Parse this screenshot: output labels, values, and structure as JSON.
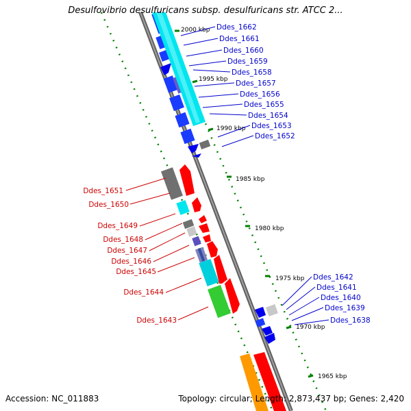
{
  "title": "Desulfovibrio desulfuricans subsp. desulfuricans str. ATCC 2...",
  "footer": {
    "accession": "Accession: NC_011883",
    "summary": "Topology: circular; Length: 2,873,437 bp; Genes: 2,420"
  },
  "scale_labels": [
    "2000 kbp",
    "1995 kbp",
    "1990 kbp",
    "1985 kbp",
    "1980 kbp",
    "1975 kbp",
    "1970 kbp",
    "1965 kbp"
  ],
  "colors": {
    "forward_label": "#cc0000",
    "reverse_label": "#0000cc",
    "backbone": "#808080",
    "tick": "#008000",
    "cds_forward": "#ff0000",
    "cds_reverse": "#0000ff",
    "cyan": "#00e5ee",
    "dark_gray": "#6e6e6e",
    "light_gray": "#c0c0c0",
    "slate": "#6a5acd",
    "green": "#33cc33",
    "orange": "#ff9900"
  },
  "genes_reverse_strand": [
    "Ddes_1662",
    "Ddes_1661",
    "Ddes_1660",
    "Ddes_1659",
    "Ddes_1658",
    "Ddes_1657",
    "Ddes_1656",
    "Ddes_1655",
    "Ddes_1654",
    "Ddes_1653",
    "Ddes_1652",
    "Ddes_1642",
    "Ddes_1641",
    "Ddes_1640",
    "Ddes_1639",
    "Ddes_1638"
  ],
  "genes_forward_strand": [
    "Ddes_1651",
    "Ddes_1650",
    "Ddes_1649",
    "Ddes_1648",
    "Ddes_1647",
    "Ddes_1646",
    "Ddes_1645",
    "Ddes_1644",
    "Ddes_1643"
  ]
}
